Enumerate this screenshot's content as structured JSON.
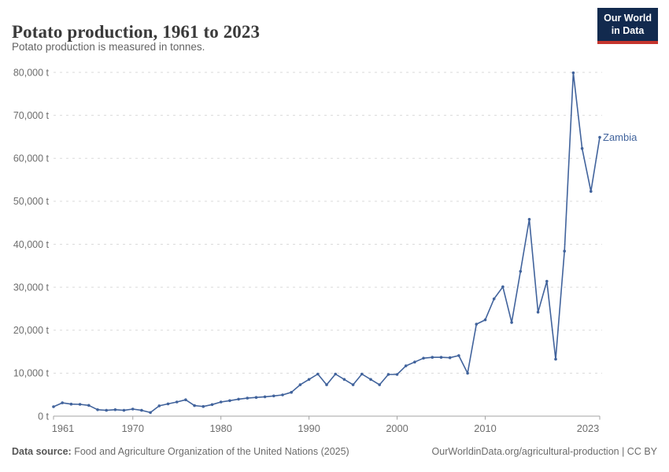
{
  "header": {
    "title": "Potato production, 1961 to 2023",
    "subtitle": "Potato production is measured in tonnes.",
    "logo": {
      "line1": "Our World",
      "line2": "in Data",
      "bg_color": "#122a4e",
      "accent_color": "#c5352e"
    }
  },
  "footer": {
    "source_label": "Data source:",
    "source_text": " Food and Agriculture Organization of the United Nations (2025)",
    "credit": "OurWorldinData.org/agricultural-production | CC BY"
  },
  "chart_data": {
    "type": "line",
    "title": "Potato production, 1961 to 2023",
    "ylabel": "",
    "xlabel": "",
    "unit": "t",
    "series_label": "Zambia",
    "line_color": "#41639c",
    "grid": "horizontal-dashed",
    "legend_position": "end-of-line-label",
    "xlim": [
      1961,
      2023
    ],
    "ylim": [
      0,
      80000
    ],
    "x_ticks": [
      1961,
      1970,
      1980,
      1990,
      2000,
      2010,
      2023
    ],
    "y_ticks": [
      0,
      10000,
      20000,
      30000,
      40000,
      50000,
      60000,
      70000,
      80000
    ],
    "x": [
      1961,
      1962,
      1963,
      1964,
      1965,
      1966,
      1967,
      1968,
      1969,
      1970,
      1971,
      1972,
      1973,
      1974,
      1975,
      1976,
      1977,
      1978,
      1979,
      1980,
      1981,
      1982,
      1983,
      1984,
      1985,
      1986,
      1987,
      1988,
      1989,
      1990,
      1991,
      1992,
      1993,
      1994,
      1995,
      1996,
      1997,
      1998,
      1999,
      2000,
      2001,
      2002,
      2003,
      2004,
      2005,
      2006,
      2007,
      2008,
      2009,
      2010,
      2011,
      2012,
      2013,
      2014,
      2015,
      2016,
      2017,
      2018,
      2019,
      2020,
      2021,
      2022,
      2023
    ],
    "values": [
      2200,
      3100,
      2800,
      2750,
      2500,
      1500,
      1350,
      1500,
      1350,
      1650,
      1350,
      850,
      2400,
      2850,
      3300,
      3800,
      2450,
      2250,
      2700,
      3300,
      3600,
      3950,
      4200,
      4350,
      4500,
      4700,
      4950,
      5550,
      7300,
      8550,
      9800,
      7300,
      9800,
      8550,
      7300,
      9800,
      8550,
      7300,
      9700,
      9700,
      11700,
      12600,
      13500,
      13700,
      13700,
      13600,
      14100,
      10000,
      21400,
      22400,
      27300,
      30100,
      21800,
      33700,
      45800,
      24200,
      31400,
      13250,
      38400,
      79900,
      62300,
      52300,
      64900
    ]
  }
}
